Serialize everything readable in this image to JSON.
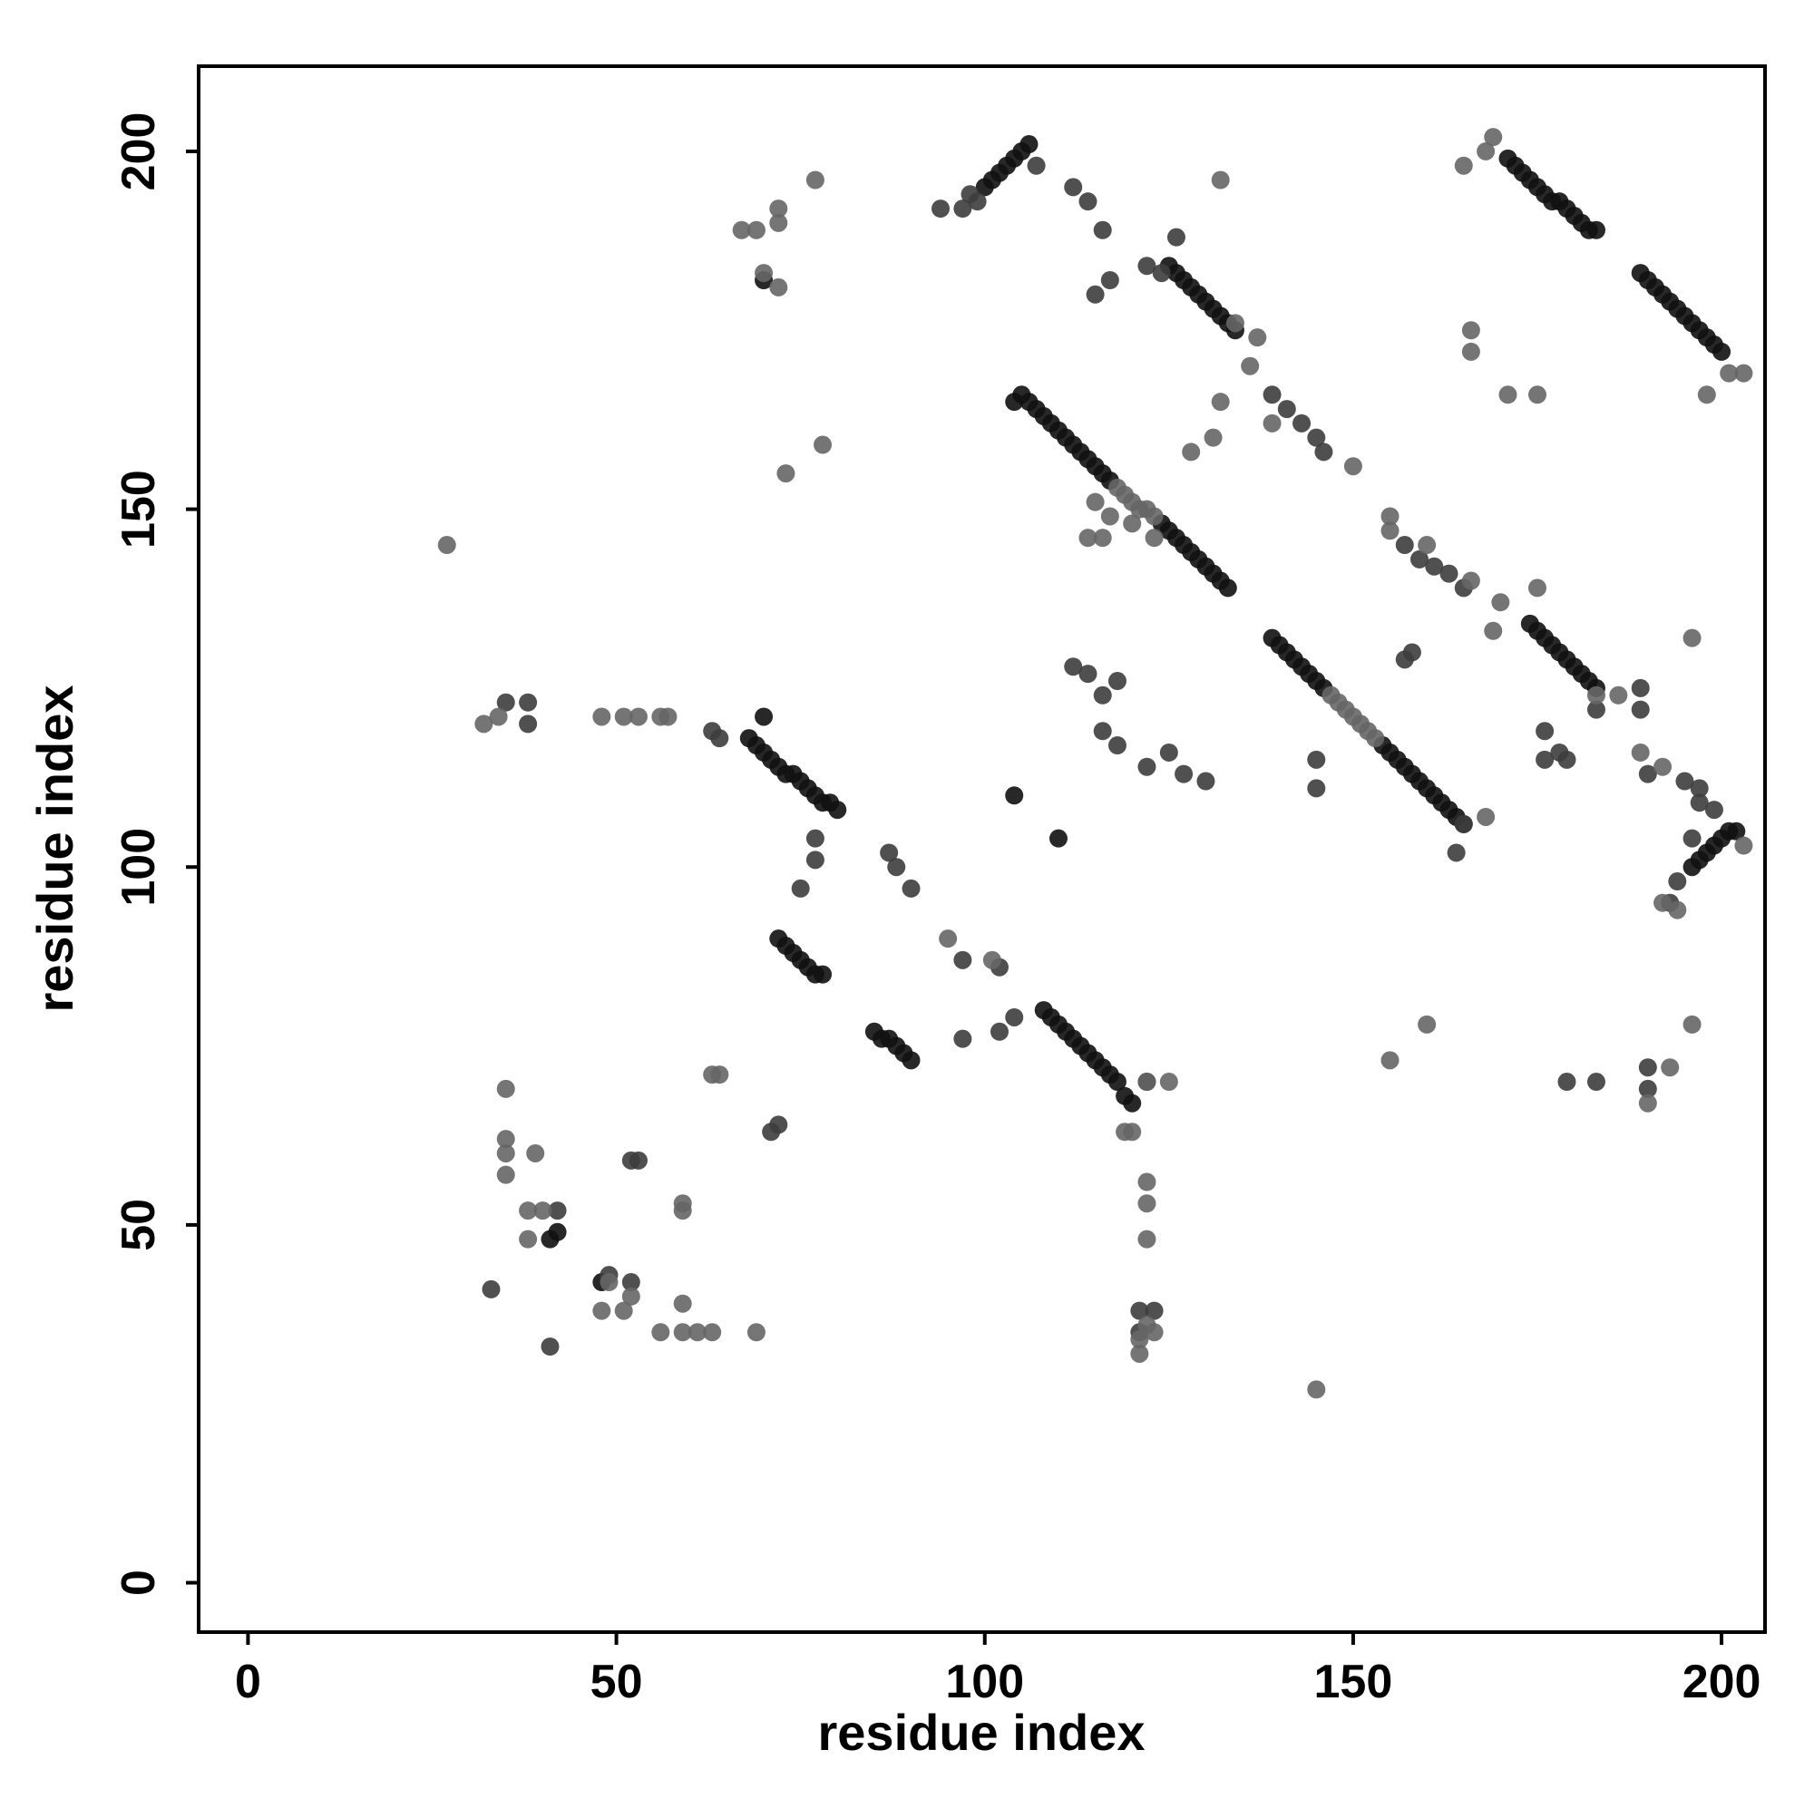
{
  "chart_data": {
    "type": "scatter",
    "x_label": "residue index",
    "y_label": "residue index",
    "xlim": [
      -6.7,
      205.9
    ],
    "ylim": [
      -6.9,
      211.9
    ],
    "xticks": [
      0,
      50,
      100,
      150,
      200
    ],
    "yticks": [
      0,
      50,
      100,
      150,
      200
    ],
    "series": [
      {
        "color": "#111111",
        "x": [
          171,
          172,
          173,
          174,
          175,
          176,
          177,
          178,
          179,
          180,
          181,
          182,
          183,
          189,
          190,
          191,
          192,
          193,
          194,
          195,
          196,
          197,
          198,
          199,
          200,
          125,
          126,
          127,
          128,
          129,
          130,
          131,
          132,
          133,
          134,
          104,
          105,
          106,
          107,
          108,
          109,
          110,
          111,
          112,
          113,
          114,
          115,
          116,
          117,
          124,
          125,
          126,
          127,
          128,
          129,
          130,
          131,
          132,
          133,
          139,
          140,
          141,
          142,
          143,
          144,
          145,
          146,
          154,
          155,
          156,
          157,
          158,
          159,
          160,
          161,
          162,
          163,
          164,
          165,
          174,
          175,
          176,
          177,
          178,
          179,
          180,
          181,
          182,
          183,
          196,
          197,
          198,
          199,
          200,
          201,
          202,
          68,
          69,
          70,
          71,
          72,
          73,
          74,
          75,
          76,
          77,
          78,
          79,
          80,
          72,
          73,
          74,
          75,
          76,
          77,
          78,
          108,
          109,
          110,
          111,
          112,
          113,
          114,
          115,
          116,
          117,
          118,
          119,
          120,
          85,
          86,
          87,
          88,
          89,
          90,
          100,
          101,
          102,
          103,
          104,
          105,
          106,
          104,
          110,
          41,
          42,
          48,
          70,
          70,
          122
        ],
        "y": [
          199,
          198,
          197,
          196,
          195,
          194,
          193,
          193,
          192,
          191,
          190,
          189,
          189,
          183,
          182,
          181,
          180,
          179,
          178,
          177,
          176,
          175,
          174,
          173,
          172,
          184,
          183,
          182,
          181,
          180,
          179,
          178,
          177,
          176,
          175,
          165,
          166,
          165,
          164,
          163,
          162,
          161,
          160,
          159,
          158,
          157,
          156,
          155,
          154,
          148,
          147,
          146,
          145,
          144,
          143,
          142,
          141,
          140,
          139,
          132,
          131,
          130,
          129,
          128,
          127,
          126,
          125,
          117,
          116,
          115,
          114,
          113,
          112,
          111,
          110,
          109,
          108,
          107,
          106,
          134,
          133,
          132,
          131,
          130,
          129,
          128,
          127,
          126,
          125,
          100,
          101,
          102,
          103,
          104,
          105,
          105,
          118,
          117,
          116,
          115,
          114,
          113,
          113,
          112,
          111,
          110,
          109,
          109,
          108,
          90,
          89,
          88,
          87,
          86,
          85,
          85,
          80,
          79,
          78,
          77,
          76,
          75,
          74,
          73,
          72,
          71,
          70,
          68,
          67,
          77,
          76,
          76,
          75,
          74,
          73,
          195,
          196,
          197,
          198,
          199,
          200,
          201,
          110,
          104,
          48,
          49,
          42,
          121,
          182,
          70
        ]
      },
      {
        "color": "#3d3d3d",
        "x": [
          94,
          97,
          98,
          99,
          107,
          112,
          114,
          116,
          117,
          115,
          122,
          124,
          126,
          139,
          141,
          143,
          145,
          146,
          157,
          159,
          161,
          163,
          165,
          179,
          183,
          189,
          189,
          195,
          197,
          197,
          193,
          194,
          112,
          114,
          116,
          118,
          122,
          125,
          127,
          130,
          145,
          145,
          97,
          97,
          102,
          102,
          104,
          87,
          88,
          90,
          75,
          77,
          77,
          33,
          42,
          49,
          52,
          52,
          53,
          41,
          190,
          190,
          179,
          183,
          121,
          121,
          123,
          38,
          38,
          35,
          71,
          72,
          63,
          64,
          116,
          118,
          165,
          164,
          158,
          157,
          176,
          178,
          176,
          190,
          196,
          199
        ],
        "y": [
          192,
          192,
          194,
          193,
          198,
          195,
          193,
          189,
          182,
          180,
          184,
          183,
          188,
          166,
          164,
          162,
          160,
          158,
          145,
          143,
          142,
          141,
          139,
          115,
          122,
          125,
          122,
          112,
          111,
          109,
          95,
          98,
          128,
          127,
          124,
          126,
          114,
          116,
          113,
          112,
          111,
          115,
          87,
          76,
          86,
          77,
          79,
          102,
          100,
          97,
          97,
          104,
          101,
          41,
          52,
          43,
          42,
          59,
          59,
          33,
          72,
          69,
          70,
          70,
          35,
          38,
          38,
          120,
          123,
          123,
          63,
          64,
          119,
          118,
          119,
          117,
          106,
          102,
          130,
          129,
          119,
          116,
          115,
          113,
          104,
          108
        ]
      },
      {
        "color": "#666666",
        "x": [
          27,
          32,
          34,
          39,
          35,
          35,
          35,
          35,
          38,
          38,
          40,
          48,
          49,
          51,
          52,
          48,
          51,
          53,
          56,
          57,
          56,
          59,
          61,
          63,
          59,
          59,
          59,
          63,
          64,
          69,
          67,
          69,
          70,
          72,
          72,
          73,
          77,
          78,
          72,
          101,
          95,
          120,
          119,
          122,
          122,
          122,
          122,
          121,
          121,
          123,
          125,
          122,
          131,
          132,
          132,
          128,
          136,
          137,
          134,
          139,
          145,
          150,
          155,
          155,
          160,
          166,
          166,
          166,
          165,
          169,
          170,
          169,
          168,
          171,
          175,
          175,
          168,
          183,
          186,
          189,
          192,
          196,
          196,
          193,
          190,
          155,
          160,
          198,
          203,
          201,
          203,
          115,
          117,
          114,
          116,
          120,
          123,
          192,
          194,
          118,
          119,
          120,
          121,
          122,
          123,
          147,
          148,
          149,
          150,
          151,
          152,
          153
        ],
        "y": [
          145,
          120,
          121,
          60,
          62,
          60,
          57,
          69,
          48,
          52,
          52,
          38,
          42,
          38,
          40,
          121,
          121,
          121,
          121,
          121,
          35,
          35,
          35,
          35,
          39,
          52,
          53,
          71,
          71,
          35,
          189,
          189,
          183,
          190,
          192,
          155,
          196,
          159,
          181,
          87,
          90,
          63,
          63,
          56,
          53,
          48,
          36,
          32,
          34,
          35,
          70,
          70,
          160,
          165,
          196,
          158,
          170,
          174,
          176,
          162,
          27,
          156,
          149,
          147,
          145,
          140,
          175,
          172,
          198,
          133,
          137,
          202,
          200,
          166,
          166,
          139,
          107,
          124,
          124,
          116,
          114,
          132,
          78,
          72,
          67,
          73,
          78,
          166,
          169,
          169,
          103,
          151,
          149,
          146,
          146,
          148,
          146,
          95,
          94,
          153,
          152,
          151,
          150,
          150,
          149,
          124,
          123,
          122,
          121,
          120,
          119,
          118
        ]
      }
    ]
  }
}
